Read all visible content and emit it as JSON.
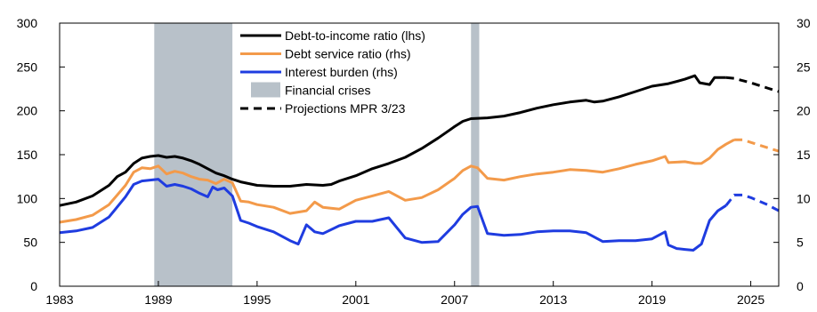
{
  "chart_data": {
    "type": "line",
    "title": "",
    "xlabel": "",
    "ylabel": "",
    "xlim": [
      1983,
      2026.7
    ],
    "ylim_left": [
      0,
      300
    ],
    "ylim_right": [
      0,
      30
    ],
    "x_ticks": [
      1983,
      1989,
      1995,
      2001,
      2007,
      2013,
      2019,
      2025
    ],
    "y_ticks_left": [
      0,
      50,
      100,
      150,
      200,
      250,
      300
    ],
    "y_ticks_right": [
      0,
      5,
      10,
      15,
      20,
      25,
      30
    ],
    "grid": false,
    "legend_position": "top-center",
    "colors": {
      "dti": "#000000",
      "dsr": "#f39a4a",
      "interest": "#1f3ce0",
      "crisis": "#b8c1c9"
    },
    "legend": [
      {
        "key": "dti",
        "label": "Debt-to-income ratio (lhs)",
        "style": "solid"
      },
      {
        "key": "dsr",
        "label": "Debt service ratio (rhs)",
        "style": "solid"
      },
      {
        "key": "interest",
        "label": "Interest burden (rhs)",
        "style": "solid"
      },
      {
        "key": "crisis",
        "label": "Financial crises",
        "style": "box"
      },
      {
        "key": "projection",
        "label": "Projections MPR 3/23",
        "style": "dashed"
      }
    ],
    "crises": [
      [
        1988.75,
        1993.5
      ],
      [
        2008.0,
        2008.5
      ]
    ],
    "series": [
      {
        "key": "dti",
        "name": "Debt-to-income ratio (lhs)",
        "axis": "left",
        "projection_start": 2023.5,
        "points": [
          [
            1983.0,
            92
          ],
          [
            1984.0,
            96
          ],
          [
            1985.0,
            103
          ],
          [
            1986.0,
            115
          ],
          [
            1986.5,
            125
          ],
          [
            1987.0,
            130
          ],
          [
            1987.5,
            140
          ],
          [
            1988.0,
            146
          ],
          [
            1988.5,
            148
          ],
          [
            1989.0,
            149
          ],
          [
            1989.5,
            147
          ],
          [
            1990.0,
            148
          ],
          [
            1990.5,
            146
          ],
          [
            1991.0,
            143
          ],
          [
            1991.5,
            139
          ],
          [
            1992.0,
            134
          ],
          [
            1992.5,
            129
          ],
          [
            1993.0,
            126
          ],
          [
            1993.5,
            122
          ],
          [
            1994.0,
            119
          ],
          [
            1995.0,
            115
          ],
          [
            1996.0,
            114
          ],
          [
            1997.0,
            114
          ],
          [
            1998.0,
            116
          ],
          [
            1999.0,
            115
          ],
          [
            1999.5,
            116
          ],
          [
            2000.0,
            120
          ],
          [
            2001.0,
            126
          ],
          [
            2002.0,
            134
          ],
          [
            2003.0,
            140
          ],
          [
            2004.0,
            147
          ],
          [
            2005.0,
            157
          ],
          [
            2006.0,
            169
          ],
          [
            2007.0,
            182
          ],
          [
            2007.5,
            188
          ],
          [
            2008.0,
            191
          ],
          [
            2009.0,
            192
          ],
          [
            2010.0,
            194
          ],
          [
            2011.0,
            198
          ],
          [
            2012.0,
            203
          ],
          [
            2013.0,
            207
          ],
          [
            2014.0,
            210
          ],
          [
            2015.0,
            212
          ],
          [
            2015.5,
            210
          ],
          [
            2016.0,
            211
          ],
          [
            2017.0,
            216
          ],
          [
            2018.0,
            222
          ],
          [
            2019.0,
            228
          ],
          [
            2020.0,
            231
          ],
          [
            2021.0,
            236
          ],
          [
            2021.6,
            240
          ],
          [
            2021.9,
            232
          ],
          [
            2022.5,
            230
          ],
          [
            2022.8,
            238
          ],
          [
            2023.5,
            238
          ],
          [
            2024.0,
            237
          ],
          [
            2025.0,
            232
          ],
          [
            2026.0,
            226
          ],
          [
            2026.7,
            222
          ]
        ]
      },
      {
        "key": "dsr",
        "name": "Debt service ratio (rhs)",
        "axis": "right",
        "projection_start": 2024.0,
        "points": [
          [
            1983.0,
            7.3
          ],
          [
            1984.0,
            7.6
          ],
          [
            1985.0,
            8.1
          ],
          [
            1986.0,
            9.3
          ],
          [
            1987.0,
            11.5
          ],
          [
            1987.5,
            13.0
          ],
          [
            1988.0,
            13.5
          ],
          [
            1988.5,
            13.4
          ],
          [
            1989.0,
            13.7
          ],
          [
            1989.5,
            12.8
          ],
          [
            1990.0,
            13.1
          ],
          [
            1990.5,
            12.9
          ],
          [
            1991.0,
            12.5
          ],
          [
            1991.5,
            12.2
          ],
          [
            1992.0,
            12.1
          ],
          [
            1992.5,
            11.7
          ],
          [
            1993.0,
            12.2
          ],
          [
            1993.5,
            11.8
          ],
          [
            1994.0,
            9.7
          ],
          [
            1994.5,
            9.6
          ],
          [
            1995.0,
            9.3
          ],
          [
            1996.0,
            9.0
          ],
          [
            1997.0,
            8.3
          ],
          [
            1998.0,
            8.6
          ],
          [
            1998.5,
            9.6
          ],
          [
            1999.0,
            9.0
          ],
          [
            2000.0,
            8.8
          ],
          [
            2001.0,
            9.8
          ],
          [
            2002.0,
            10.3
          ],
          [
            2003.0,
            10.8
          ],
          [
            2004.0,
            9.8
          ],
          [
            2005.0,
            10.1
          ],
          [
            2006.0,
            11.0
          ],
          [
            2007.0,
            12.3
          ],
          [
            2007.5,
            13.2
          ],
          [
            2008.0,
            13.7
          ],
          [
            2008.4,
            13.5
          ],
          [
            2009.0,
            12.3
          ],
          [
            2010.0,
            12.1
          ],
          [
            2011.0,
            12.5
          ],
          [
            2012.0,
            12.8
          ],
          [
            2013.0,
            13.0
          ],
          [
            2014.0,
            13.3
          ],
          [
            2015.0,
            13.2
          ],
          [
            2016.0,
            13.0
          ],
          [
            2017.0,
            13.4
          ],
          [
            2018.0,
            13.9
          ],
          [
            2019.0,
            14.3
          ],
          [
            2019.8,
            14.8
          ],
          [
            2020.0,
            14.1
          ],
          [
            2021.0,
            14.2
          ],
          [
            2021.6,
            14.0
          ],
          [
            2022.0,
            14.0
          ],
          [
            2022.5,
            14.6
          ],
          [
            2023.0,
            15.6
          ],
          [
            2023.5,
            16.2
          ],
          [
            2024.0,
            16.7
          ],
          [
            2024.5,
            16.7
          ],
          [
            2025.0,
            16.4
          ],
          [
            2026.0,
            15.8
          ],
          [
            2026.7,
            15.4
          ]
        ]
      },
      {
        "key": "interest",
        "name": "Interest burden (rhs)",
        "axis": "right",
        "projection_start": 2023.5,
        "points": [
          [
            1983.0,
            6.1
          ],
          [
            1984.0,
            6.3
          ],
          [
            1985.0,
            6.7
          ],
          [
            1986.0,
            7.9
          ],
          [
            1987.0,
            10.2
          ],
          [
            1987.5,
            11.6
          ],
          [
            1988.0,
            12.0
          ],
          [
            1988.5,
            12.1
          ],
          [
            1989.0,
            12.2
          ],
          [
            1989.5,
            11.4
          ],
          [
            1990.0,
            11.6
          ],
          [
            1990.5,
            11.4
          ],
          [
            1991.0,
            11.1
          ],
          [
            1991.5,
            10.6
          ],
          [
            1992.0,
            10.2
          ],
          [
            1992.3,
            11.3
          ],
          [
            1992.6,
            11.0
          ],
          [
            1993.0,
            11.2
          ],
          [
            1993.5,
            10.3
          ],
          [
            1994.0,
            7.5
          ],
          [
            1994.5,
            7.2
          ],
          [
            1995.0,
            6.8
          ],
          [
            1996.0,
            6.2
          ],
          [
            1997.0,
            5.2
          ],
          [
            1997.5,
            4.8
          ],
          [
            1998.0,
            7.0
          ],
          [
            1998.5,
            6.2
          ],
          [
            1999.0,
            6.0
          ],
          [
            2000.0,
            6.9
          ],
          [
            2001.0,
            7.4
          ],
          [
            2002.0,
            7.4
          ],
          [
            2003.0,
            7.8
          ],
          [
            2004.0,
            5.5
          ],
          [
            2005.0,
            5.0
          ],
          [
            2006.0,
            5.1
          ],
          [
            2007.0,
            7.0
          ],
          [
            2007.5,
            8.2
          ],
          [
            2008.0,
            9.0
          ],
          [
            2008.4,
            9.1
          ],
          [
            2009.0,
            6.0
          ],
          [
            2010.0,
            5.8
          ],
          [
            2011.0,
            5.9
          ],
          [
            2012.0,
            6.2
          ],
          [
            2013.0,
            6.3
          ],
          [
            2014.0,
            6.3
          ],
          [
            2015.0,
            6.1
          ],
          [
            2016.0,
            5.1
          ],
          [
            2017.0,
            5.2
          ],
          [
            2018.0,
            5.2
          ],
          [
            2019.0,
            5.4
          ],
          [
            2019.8,
            6.2
          ],
          [
            2020.0,
            4.7
          ],
          [
            2020.5,
            4.3
          ],
          [
            2021.0,
            4.2
          ],
          [
            2021.5,
            4.1
          ],
          [
            2022.0,
            4.8
          ],
          [
            2022.5,
            7.5
          ],
          [
            2023.0,
            8.6
          ],
          [
            2023.5,
            9.2
          ],
          [
            2024.0,
            10.4
          ],
          [
            2024.5,
            10.4
          ],
          [
            2025.0,
            10.1
          ],
          [
            2026.0,
            9.3
          ],
          [
            2026.7,
            8.6
          ]
        ]
      }
    ]
  }
}
